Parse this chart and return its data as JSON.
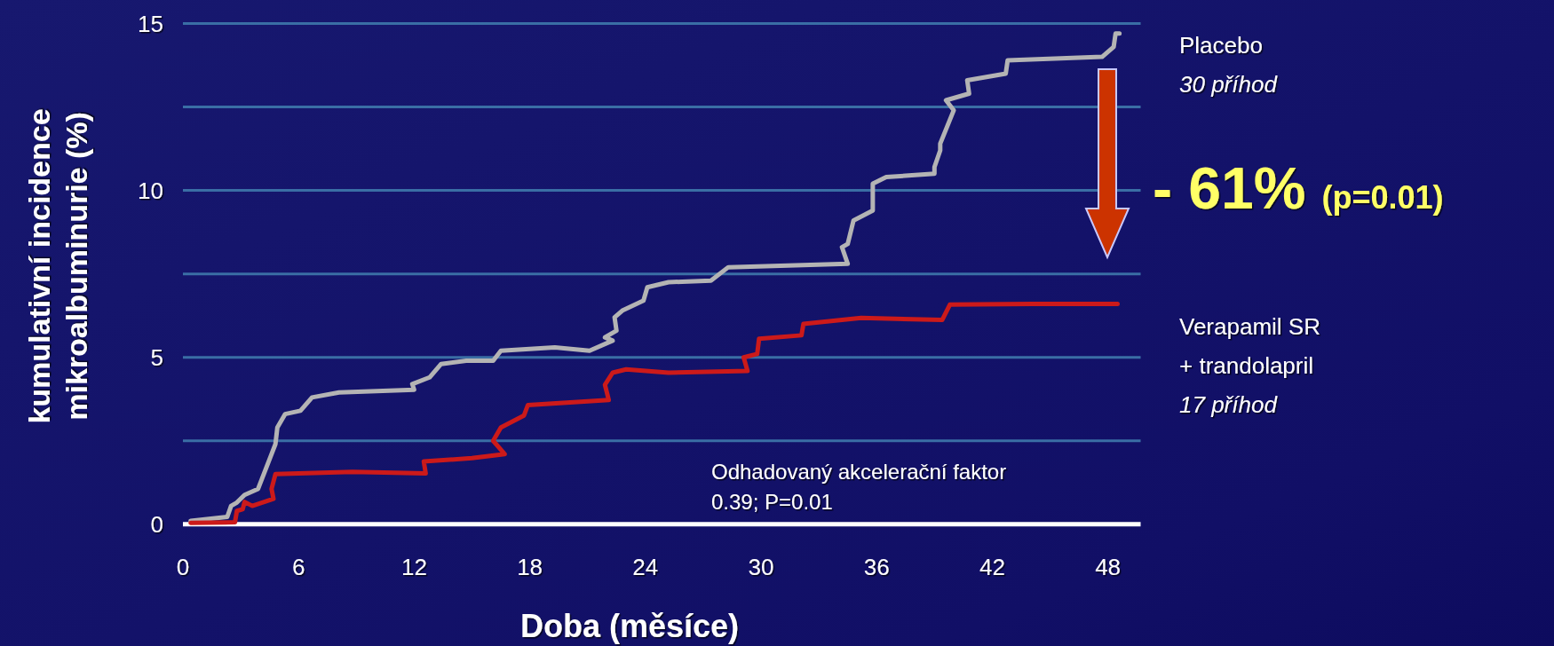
{
  "chart_data": {
    "type": "line",
    "xlabel": "Doba (měsíce)",
    "ylabel": "kumulativní incidence mikroalbuminurie (%)",
    "xlim": [
      0,
      49.7
    ],
    "ylim": [
      0,
      15
    ],
    "xticks": [
      0,
      6,
      12,
      18,
      24,
      30,
      36,
      42,
      48
    ],
    "yticks": [
      0,
      {
        "value": 2.5,
        "label": null
      },
      5,
      {
        "value": 7.5,
        "label": null
      },
      10,
      {
        "value": 12.5,
        "label": null
      },
      15
    ],
    "grid": "y",
    "series": [
      {
        "name": "Placebo",
        "color": "#b4b4b4",
        "x": [
          0.4,
          2.3,
          2.5,
          2.8,
          3.2,
          3.9,
          4.8,
          4.9,
          5.3,
          6.1,
          6.7,
          8.1,
          12.0,
          11.9,
          12.8,
          13.4,
          14.7,
          16.1,
          16.5,
          19.3,
          21.1,
          22.3,
          21.9,
          22.5,
          22.4,
          22.8,
          23.9,
          24.1,
          25.2,
          27.4,
          28.3,
          34.5,
          34.2,
          34.5,
          34.8,
          35.8,
          35.8,
          36.5,
          39.0,
          39.0,
          39.3,
          39.3,
          40.0,
          39.6,
          40.8,
          40.7,
          42.7,
          42.8,
          47.7,
          48.3,
          48.4,
          48.6
        ],
        "values": [
          0.1,
          0.22,
          0.55,
          0.65,
          0.88,
          1.06,
          2.4,
          2.9,
          3.3,
          3.4,
          3.8,
          3.95,
          4.03,
          4.2,
          4.4,
          4.8,
          4.9,
          4.9,
          5.2,
          5.3,
          5.2,
          5.5,
          5.6,
          5.8,
          6.2,
          6.4,
          6.7,
          7.1,
          7.25,
          7.3,
          7.7,
          7.8,
          8.3,
          8.4,
          9.1,
          9.4,
          10.2,
          10.4,
          10.5,
          10.7,
          11.2,
          11.4,
          12.4,
          12.7,
          12.9,
          13.3,
          13.5,
          13.9,
          14.0,
          14.3,
          14.7,
          14.7
        ]
      },
      {
        "name": "Verapamil SR + trandolapril",
        "color": "#cc1a1a",
        "x": [
          0.4,
          2.7,
          2.8,
          3.1,
          3.2,
          3.6,
          4.7,
          4.6,
          4.8,
          8.8,
          12.6,
          12.5,
          15.0,
          16.7,
          16.1,
          16.5,
          17.7,
          17.9,
          22.1,
          21.9,
          22.3,
          23.0,
          25.2,
          29.3,
          29.1,
          29.8,
          29.9,
          32.1,
          32.2,
          35.2,
          39.4,
          39.8,
          44.1,
          48.5
        ],
        "values": [
          0.04,
          0.06,
          0.4,
          0.45,
          0.67,
          0.55,
          0.76,
          1.06,
          1.5,
          1.57,
          1.52,
          1.88,
          1.98,
          2.1,
          2.5,
          2.9,
          3.26,
          3.57,
          3.72,
          4.18,
          4.54,
          4.64,
          4.54,
          4.59,
          5.0,
          5.1,
          5.56,
          5.66,
          6.0,
          6.18,
          6.12,
          6.58,
          6.6,
          6.6
        ]
      }
    ],
    "annotations": [
      "30 příhod",
      "17 příhod",
      "- 61%",
      "(p=0.01)",
      "Odhadovaný akcelerační faktor",
      "0.39; P=0.01"
    ]
  }
}
